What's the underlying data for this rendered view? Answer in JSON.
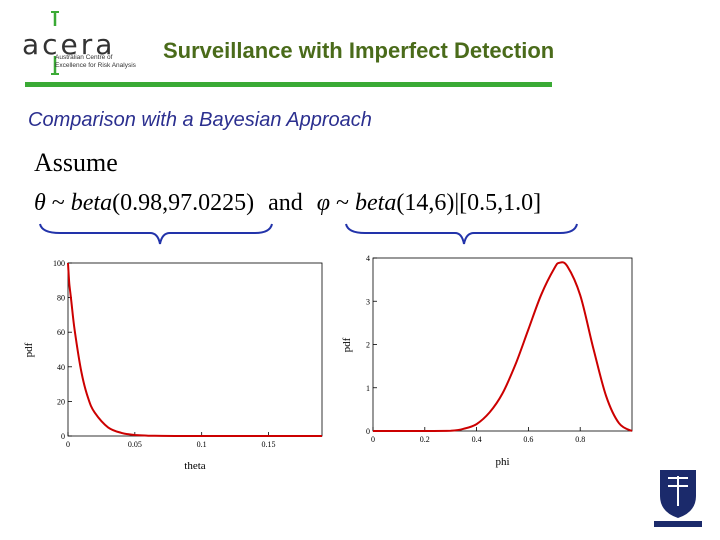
{
  "header": {
    "logo_word": "acera",
    "logo_subtitle": "Australian Centre of\nExcellence for Risk Analysis",
    "title": "Surveillance with Imperfect Detection"
  },
  "subtitle": "Comparison with a Bayesian Approach",
  "formula": {
    "assume": "Assume",
    "theta_sym": "θ",
    "tilde": " ~ ",
    "beta_word": "beta",
    "theta_args": "(0.98,97.0225)",
    "and": "and",
    "phi_sym": "φ",
    "phi_args": "(14,6)",
    "bar": "|",
    "interval": "[0.5,1.0]"
  },
  "colors": {
    "title": "#4a6b1a",
    "subtitle": "#2b2f8f",
    "rule": "#3aaa35",
    "curve": "#cc0000",
    "brace": "#2233aa"
  },
  "chart_data": [
    {
      "type": "line",
      "xlabel": "theta",
      "ylabel": "pdf",
      "xlim": [
        0,
        0.19
      ],
      "ylim": [
        0,
        100
      ],
      "xticks": [
        "0",
        "0.05",
        "0.1",
        "0.15"
      ],
      "yticks": [
        "0",
        "20",
        "40",
        "60",
        "80",
        "100"
      ],
      "series": [
        {
          "x": [
            0,
            0.001,
            0.0025,
            0.005,
            0.01,
            0.015,
            0.02,
            0.03,
            0.04,
            0.05,
            0.06,
            0.07,
            0.08,
            0.1,
            0.12,
            0.15,
            0.19
          ],
          "values": [
            100,
            88,
            78,
            61,
            37,
            22,
            13.5,
            5,
            1.8,
            0.6,
            0.2,
            0.07,
            0.02,
            0,
            0,
            0,
            0
          ]
        }
      ]
    },
    {
      "type": "line",
      "xlabel": "phi",
      "ylabel": "pdf",
      "xlim": [
        0,
        1.0
      ],
      "ylim": [
        0,
        4
      ],
      "xticks": [
        "0",
        "0.2",
        "0.4",
        "0.6",
        "0.8"
      ],
      "yticks": [
        "0",
        "1",
        "2",
        "3",
        "4"
      ],
      "series": [
        {
          "x": [
            0,
            0.2,
            0.3,
            0.35,
            0.4,
            0.45,
            0.5,
            0.55,
            0.6,
            0.65,
            0.7,
            0.72,
            0.75,
            0.8,
            0.85,
            0.9,
            0.95,
            1.0
          ],
          "values": [
            0,
            0,
            0.005,
            0.05,
            0.16,
            0.43,
            0.87,
            1.54,
            2.35,
            3.16,
            3.76,
            3.89,
            3.81,
            3.14,
            1.93,
            0.81,
            0.18,
            0
          ]
        }
      ]
    }
  ]
}
